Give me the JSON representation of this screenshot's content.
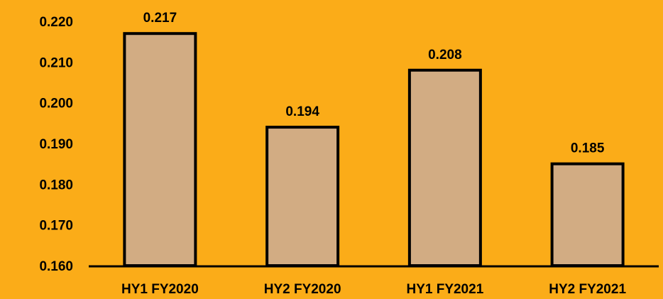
{
  "colors": {
    "background": "#FBAC18",
    "bar_fill": "#D2AC83",
    "bar_stroke": "#000000"
  },
  "chart_data": {
    "type": "bar",
    "title": "",
    "xlabel": "",
    "ylabel": "",
    "categories": [
      "HY1 FY2020",
      "HY2 FY2020",
      "HY1 FY2021",
      "HY2 FY2021"
    ],
    "values": [
      0.217,
      0.194,
      0.208,
      0.185
    ],
    "data_labels": [
      "0.217",
      "0.194",
      "0.208",
      "0.185"
    ],
    "ylim": [
      0.16,
      0.22
    ],
    "yticks": [
      0.16,
      0.17,
      0.18,
      0.19,
      0.2,
      0.21,
      0.22
    ],
    "ytick_labels": [
      "0.160",
      "0.170",
      "0.180",
      "0.190",
      "0.200",
      "0.210",
      "0.220"
    ],
    "grid": false,
    "legend": "none"
  }
}
